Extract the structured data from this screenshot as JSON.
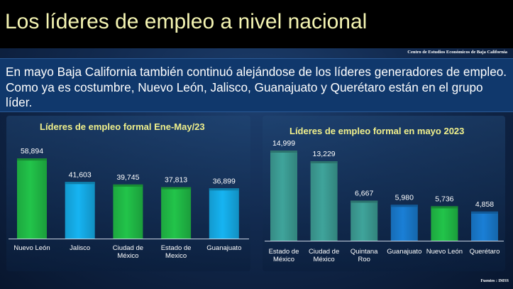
{
  "slide": {
    "title": "Los líderes de empleo a nivel nacional",
    "center": "Centro de Estudios Económicos de Baja California",
    "intro": "En mayo Baja California también continuó alejándose de los líderes generadores de empleo. Como ya es costumbre, Nuevo León, Jalisco, Guanajuato y Querétaro están en el grupo líder.",
    "source": "Fuentes : IMSS"
  },
  "colors": {
    "green": "#22c44a",
    "light_blue": "#16b4f2",
    "teal": "#3fa49b",
    "blue": "#1a7fd6"
  },
  "chart_data": [
    {
      "type": "bar",
      "title": "Líderes de empleo formal Ene-May/23",
      "categories": [
        "Nuevo León",
        "Jalisco",
        "Ciudad de México",
        "Estado de Mexico",
        "Guanajuato"
      ],
      "tick_labels": [
        [
          "Nuevo León"
        ],
        [
          "Jalisco"
        ],
        [
          "Ciudad de",
          "México"
        ],
        [
          "Estado de",
          "Mexico"
        ],
        [
          "Guanajuato"
        ]
      ],
      "values": [
        58894,
        41603,
        39745,
        37813,
        36899
      ],
      "value_labels": [
        "58,894",
        "41,603",
        "39,745",
        "37,813",
        "36,899"
      ],
      "bar_colors": [
        "green",
        "light_blue",
        "green",
        "green",
        "light_blue"
      ],
      "ylim": [
        0,
        60000
      ],
      "grid": false
    },
    {
      "type": "bar",
      "title": "Líderes de empleo formal en mayo 2023",
      "categories": [
        "Estado de México",
        "Ciudad de México",
        "Quintana Roo",
        "Guanajuato",
        "Nuevo León",
        "Querétaro"
      ],
      "tick_labels": [
        [
          "Estado de",
          "México"
        ],
        [
          "Ciudad de",
          "México"
        ],
        [
          "Quintana",
          "Roo"
        ],
        [
          "Guanajuato"
        ],
        [
          "Nuevo León"
        ],
        [
          "Querétaro"
        ]
      ],
      "values": [
        14999,
        13229,
        6667,
        5980,
        5736,
        4858
      ],
      "value_labels": [
        "14,999",
        "13,229",
        "6,667",
        "5,980",
        "5,736",
        "4,858"
      ],
      "bar_colors": [
        "teal",
        "teal",
        "teal",
        "blue",
        "green",
        "blue"
      ],
      "ylim": [
        0,
        15000
      ],
      "grid": false
    }
  ]
}
